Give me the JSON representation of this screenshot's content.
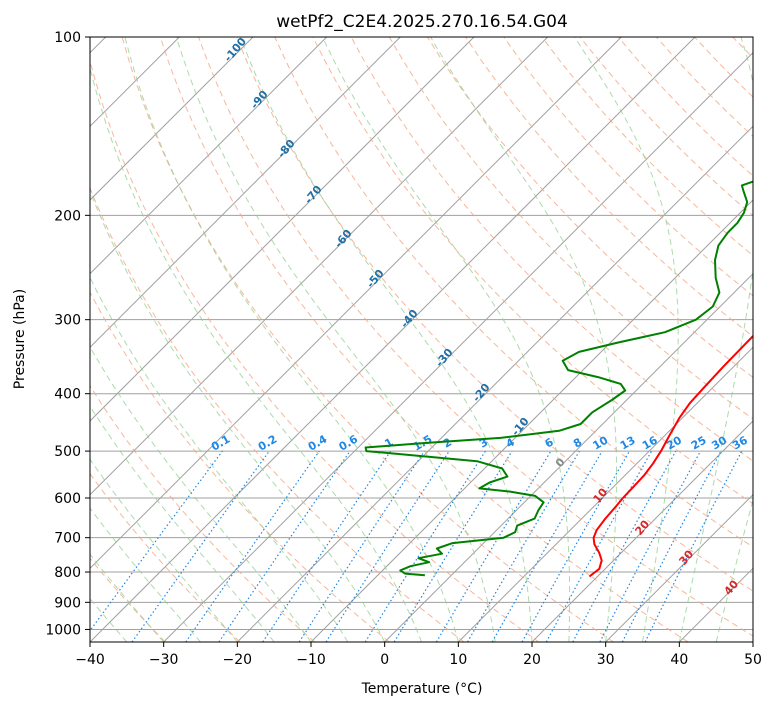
{
  "chart_data": {
    "type": "skew-t",
    "title": "wetPf2_C2E4.2025.270.16.54.G04",
    "xlabel": "Temperature (°C)",
    "ylabel": "Pressure (hPa)",
    "xlim": [
      -40,
      50
    ],
    "ylim": [
      1050,
      100
    ],
    "x_ticks": [
      "−40",
      "−30",
      "−20",
      "−10",
      "0",
      "10",
      "20",
      "30",
      "40",
      "50"
    ],
    "x_tick_values": [
      -40,
      -30,
      -20,
      -10,
      0,
      10,
      20,
      30,
      40,
      50
    ],
    "y_ticks": [
      "100",
      "200",
      "300",
      "400",
      "500",
      "600",
      "700",
      "800",
      "900",
      "1000"
    ],
    "y_tick_values": [
      100,
      200,
      300,
      400,
      500,
      600,
      700,
      800,
      900,
      1000
    ],
    "series": [
      {
        "name": "Temperature",
        "color": "#ff0000",
        "points": [
          [
            814,
            18.9
          ],
          [
            790,
            19.2
          ],
          [
            765,
            18.4
          ],
          [
            742,
            17.0
          ],
          [
            718,
            15.2
          ],
          [
            700,
            14.2
          ],
          [
            680,
            13.6
          ],
          [
            650,
            13.2
          ],
          [
            620,
            13.0
          ],
          [
            600,
            12.8
          ],
          [
            575,
            12.7
          ],
          [
            550,
            12.6
          ],
          [
            525,
            12.2
          ],
          [
            500,
            11.6
          ],
          [
            470,
            10.6
          ],
          [
            440,
            9.6
          ],
          [
            415,
            9.0
          ],
          [
            390,
            8.8
          ],
          [
            360,
            8.6
          ],
          [
            330,
            8.5
          ],
          [
            300,
            8.4
          ],
          [
            275,
            7.8
          ],
          [
            255,
            7.2
          ],
          [
            235,
            6.4
          ],
          [
            215,
            5.6
          ],
          [
            200,
            5.2
          ],
          [
            185,
            5.3
          ],
          [
            170,
            5.8
          ],
          [
            155,
            6.4
          ],
          [
            145,
            7.0
          ],
          [
            135,
            8.0
          ],
          [
            125,
            10.0
          ],
          [
            118,
            12.0
          ],
          [
            112,
            13.6
          ],
          [
            106,
            14.8
          ],
          [
            100,
            16.2
          ]
        ]
      },
      {
        "name": "Dewpoint",
        "color": "#008000",
        "points": [
          [
            810,
            -3.6
          ],
          [
            805,
            -6.5
          ],
          [
            795,
            -7.6
          ],
          [
            782,
            -6.8
          ],
          [
            770,
            -4.8
          ],
          [
            758,
            -6.8
          ],
          [
            745,
            -4.2
          ],
          [
            730,
            -5.6
          ],
          [
            715,
            -4.2
          ],
          [
            700,
            2.0
          ],
          [
            685,
            2.8
          ],
          [
            668,
            2.2
          ],
          [
            650,
            3.6
          ],
          [
            630,
            3.0
          ],
          [
            610,
            2.6
          ],
          [
            595,
            0.6
          ],
          [
            585,
            -3.5
          ],
          [
            578,
            -8.0
          ],
          [
            565,
            -7.4
          ],
          [
            552,
            -5.8
          ],
          [
            535,
            -7.6
          ],
          [
            520,
            -12.0
          ],
          [
            510,
            -20.0
          ],
          [
            500,
            -28.4
          ],
          [
            493,
            -29.0
          ],
          [
            485,
            -22.0
          ],
          [
            475,
            -12.0
          ],
          [
            462,
            -5.0
          ],
          [
            450,
            -3.0
          ],
          [
            430,
            -3.0
          ],
          [
            410,
            -2.0
          ],
          [
            395,
            -1.5
          ],
          [
            385,
            -3.0
          ],
          [
            375,
            -7.0
          ],
          [
            365,
            -12.0
          ],
          [
            352,
            -14.0
          ],
          [
            340,
            -13.0
          ],
          [
            328,
            -9.0
          ],
          [
            315,
            -4.0
          ],
          [
            300,
            -1.5
          ],
          [
            285,
            -1.0
          ],
          [
            270,
            -2.0
          ],
          [
            255,
            -4.5
          ],
          [
            238,
            -7.0
          ],
          [
            225,
            -8.5
          ],
          [
            214,
            -9.0
          ],
          [
            206,
            -9.0
          ],
          [
            198,
            -9.5
          ],
          [
            190,
            -10.5
          ],
          [
            182,
            -12.5
          ],
          [
            178,
            -13.5
          ],
          [
            174,
            -12.0
          ],
          [
            168,
            -9.5
          ],
          [
            160,
            -6.5
          ],
          [
            150,
            -4.5
          ],
          [
            140,
            -3.5
          ],
          [
            130,
            -3.5
          ],
          [
            122,
            -4.0
          ],
          [
            116,
            -3.5
          ],
          [
            110,
            -2.5
          ],
          [
            105,
            -1.5
          ],
          [
            100,
            -1.0
          ]
        ]
      }
    ],
    "dry_adiabat_labels": [
      "-100",
      "-90",
      "-80",
      "-70",
      "-60",
      "-50",
      "-40",
      "-30",
      "-20",
      "-10"
    ],
    "mixing_ratio_labels": [
      "0.1",
      "0.2",
      "0.4",
      "0.6",
      "1",
      "1.5",
      "2",
      "3",
      "4",
      "6",
      "8",
      "10",
      "13",
      "16",
      "20",
      "25",
      "30",
      "36"
    ],
    "mixing_ratio_values": [
      0.1,
      0.2,
      0.4,
      0.6,
      1,
      1.5,
      2,
      3,
      4,
      6,
      8,
      10,
      13,
      16,
      20,
      25,
      30,
      36
    ],
    "moist_adiabat_labels": [
      "0",
      "10",
      "20",
      "30",
      "40"
    ],
    "colors": {
      "temperature": "#ff0000",
      "dewpoint": "#008000",
      "isotherm": "#a0a0a0",
      "isobar": "#a0a0a0",
      "dry_adiabat": "#f4a582",
      "moist_adiabat": "#8fcf8f",
      "mixing_ratio": "#1e88e5",
      "adiabat_label": "#1f6fa8",
      "moist_label": "#d62728",
      "parcel_curve": "#c8b8a0"
    }
  }
}
